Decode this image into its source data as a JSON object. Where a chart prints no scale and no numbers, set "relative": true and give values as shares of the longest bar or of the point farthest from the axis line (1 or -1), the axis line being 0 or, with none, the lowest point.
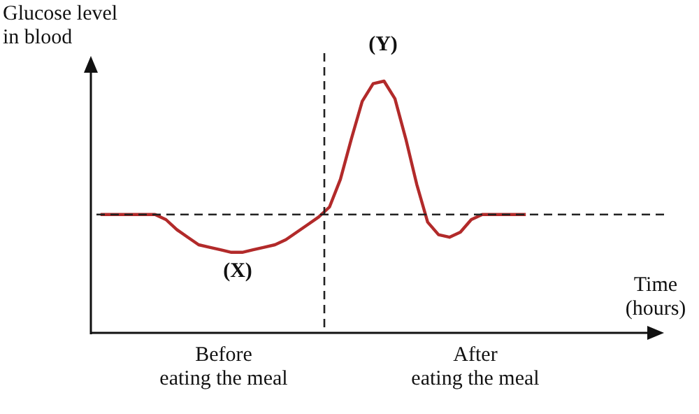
{
  "chart_data": {
    "type": "line",
    "relative": true,
    "xlabel": "Time (hours)",
    "ylabel": "Glucose level in blood",
    "categories": [
      null,
      null,
      null,
      null,
      null,
      null,
      null,
      null,
      null,
      null,
      null,
      null,
      null,
      null,
      null,
      null,
      null,
      null,
      null,
      null,
      null,
      null,
      null,
      null,
      null,
      null,
      null,
      null,
      null,
      null,
      null,
      null,
      null,
      null,
      null,
      null,
      null,
      null,
      null,
      null
    ],
    "line_style": "solid",
    "series": [
      {
        "color": "#b22a2a",
        "values": [
          0.47,
          0.47,
          0.47,
          0.47,
          0.47,
          0.47,
          0.45,
          0.41,
          0.38,
          0.35,
          0.34,
          0.33,
          0.32,
          0.32,
          0.33,
          0.34,
          0.35,
          0.37,
          0.4,
          0.43,
          0.46,
          0.5,
          0.61,
          0.77,
          0.92,
          0.99,
          1.0,
          0.93,
          0.77,
          0.59,
          0.44,
          0.39,
          0.38,
          0.4,
          0.45,
          0.47,
          0.47,
          0.47,
          0.47,
          0.47
        ]
      }
    ],
    "ref_lines": [
      {
        "axis": "y",
        "value": 0.47,
        "line_style": "dashed",
        "color": "#222222"
      }
    ],
    "annotations": [
      "(X)",
      "(Y)",
      "Before eating the meal",
      "After eating the meal"
    ]
  }
}
